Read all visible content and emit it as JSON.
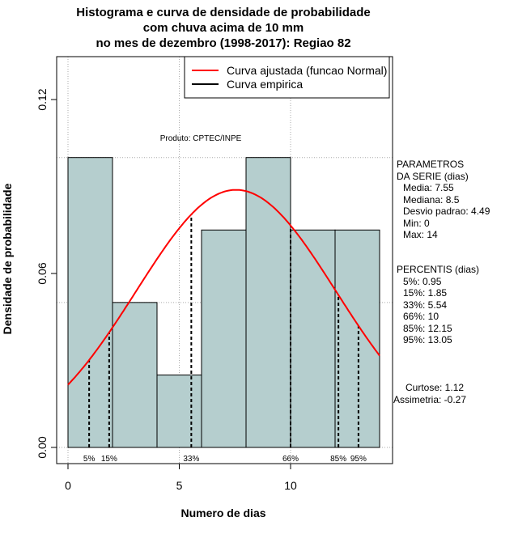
{
  "chart_data": {
    "type": "bar",
    "title_lines": [
      "Histograma e curva de densidade de probabilidade",
      "com chuva acima de 10 mm",
      "no mes de dezembro (1998-2017): Regiao 82"
    ],
    "xlabel": "Numero de dias",
    "ylabel": "Densidade de probabilidade",
    "xlim": [
      -0.5,
      14.5
    ],
    "ylim": [
      0,
      0.13
    ],
    "x_ticks": [
      0,
      5,
      10
    ],
    "x_tick_labels": [
      "0",
      "5",
      "10"
    ],
    "y_ticks": [
      0,
      0.06,
      0.12
    ],
    "y_tick_labels": [
      "0.00",
      "0.06",
      "0.12"
    ],
    "grid_x": [
      0,
      5,
      10
    ],
    "grid_y": [
      0,
      0.05,
      0.1
    ],
    "bins": [
      [
        0,
        2
      ],
      [
        2,
        4
      ],
      [
        4,
        6
      ],
      [
        6,
        8
      ],
      [
        8,
        10
      ],
      [
        10,
        12
      ],
      [
        12,
        14
      ]
    ],
    "densities": [
      0.1,
      0.05,
      0.025,
      0.075,
      0.1,
      0.075,
      0.075
    ],
    "bar_color": "#b5cece",
    "normal_curve": {
      "mean": 7.55,
      "sd": 4.49,
      "color": "#ff0000"
    },
    "legend": {
      "placement": "top-right",
      "entries": [
        {
          "label": "Curva ajustada (funcao Normal)",
          "color": "#ff0000"
        },
        {
          "label": "Curva empirica",
          "color": "#000000"
        }
      ]
    },
    "annotation": "Produto: CPTEC/INPE",
    "percentiles": [
      {
        "label": "5%",
        "value": 0.95
      },
      {
        "label": "15%",
        "value": 1.85
      },
      {
        "label": "33%",
        "value": 5.54
      },
      {
        "label": "66%",
        "value": 10
      },
      {
        "label": "85%",
        "value": 12.15
      },
      {
        "label": "95%",
        "value": 13.05
      }
    ]
  },
  "params": {
    "header1": "PARAMETROS",
    "header2": "DA SERIE (dias)",
    "media": "Media: 7.55",
    "mediana": "Mediana: 8.5",
    "desvio": "Desvio padrao: 4.49",
    "min": "Min: 0",
    "max": "Max: 14"
  },
  "percentis": {
    "header": "PERCENTIS (dias)",
    "items": [
      "5%: 0.95",
      "15%: 1.85",
      "33%: 5.54",
      "66%: 10",
      "85%: 12.15",
      "95%: 13.05"
    ]
  },
  "stats": {
    "curtose": "Curtose: 1.12",
    "assimetria": "Assimetria: -0.27"
  }
}
